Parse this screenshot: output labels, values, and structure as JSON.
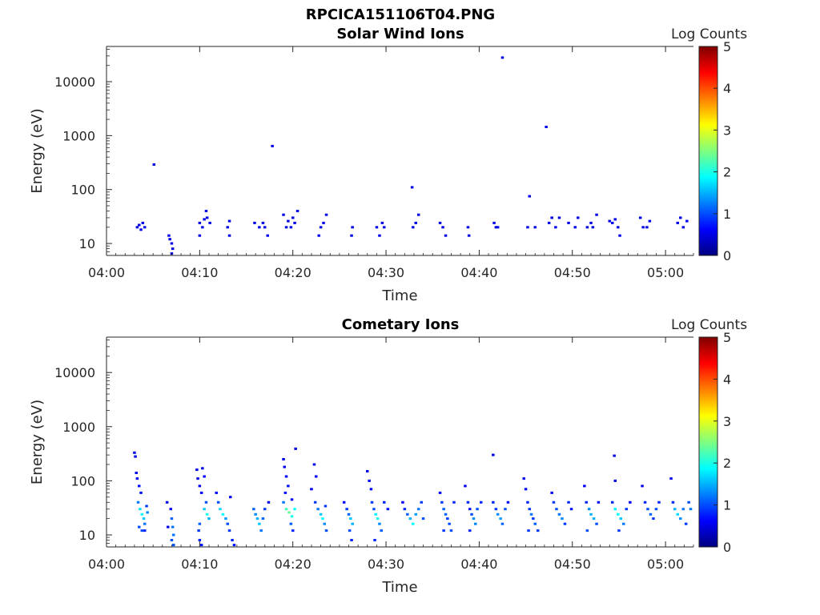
{
  "figure_title": "RPCICA151106T04.PNG",
  "colors": {
    "colormap": [
      "#00007f",
      "#0000ff",
      "#007fff",
      "#00ffff",
      "#7fff7f",
      "#ffff00",
      "#ff7f00",
      "#ff0000",
      "#7f0000"
    ],
    "axis": "#262626"
  },
  "chart_data": [
    {
      "type": "heatmap",
      "title": "Solar Wind Ions",
      "xlabel": "Time",
      "ylabel": "Energy (eV)",
      "yscale": "log",
      "xlim": [
        "04:00",
        "05:03"
      ],
      "ylim": [
        6,
        45000
      ],
      "x_ticks": [
        "04:00",
        "04:10",
        "04:20",
        "04:30",
        "04:40",
        "04:50",
        "05:00"
      ],
      "y_ticks": [
        "10",
        "100",
        "1000",
        "10000"
      ],
      "colorbar": {
        "label": "Log Counts",
        "range": [
          0,
          5
        ],
        "ticks": [
          "0",
          "1",
          "2",
          "3",
          "4",
          "5"
        ]
      },
      "points": [
        [
          3.3,
          20,
          0.5
        ],
        [
          3.5,
          22,
          0.5
        ],
        [
          3.7,
          18,
          0.5
        ],
        [
          3.9,
          24,
          0.5
        ],
        [
          4.1,
          20,
          0.5
        ],
        [
          5.1,
          290,
          0.5
        ],
        [
          6.7,
          14,
          0.5
        ],
        [
          6.8,
          12,
          0.5
        ],
        [
          7.0,
          10,
          0.5
        ],
        [
          7.1,
          8,
          0.5
        ],
        [
          7.0,
          6.5,
          0.5
        ],
        [
          10.0,
          24,
          0.5
        ],
        [
          10.0,
          14,
          0.5
        ],
        [
          10.3,
          20,
          0.5
        ],
        [
          10.5,
          28,
          0.5
        ],
        [
          10.7,
          40,
          0.5
        ],
        [
          10.8,
          30,
          0.5
        ],
        [
          11.1,
          24,
          0.5
        ],
        [
          13.0,
          20,
          0.5
        ],
        [
          13.2,
          14,
          0.5
        ],
        [
          13.2,
          26,
          0.5
        ],
        [
          15.9,
          24,
          0.5
        ],
        [
          16.4,
          20,
          0.5
        ],
        [
          16.8,
          24,
          0.5
        ],
        [
          17.0,
          20,
          0.5
        ],
        [
          17.3,
          14,
          0.5
        ],
        [
          17.8,
          640,
          0.5
        ],
        [
          19.0,
          34,
          0.5
        ],
        [
          19.3,
          20,
          0.5
        ],
        [
          19.5,
          26,
          0.5
        ],
        [
          19.8,
          20,
          0.5
        ],
        [
          20.0,
          30,
          0.5
        ],
        [
          20.2,
          24,
          0.5
        ],
        [
          20.5,
          40,
          0.5
        ],
        [
          22.8,
          14,
          0.5
        ],
        [
          23.0,
          20,
          0.5
        ],
        [
          23.3,
          24,
          0.5
        ],
        [
          23.6,
          34,
          0.5
        ],
        [
          26.3,
          14,
          0.5
        ],
        [
          26.4,
          20,
          0.5
        ],
        [
          29.0,
          20,
          0.5
        ],
        [
          29.3,
          14,
          0.5
        ],
        [
          29.6,
          24,
          0.5
        ],
        [
          29.8,
          20,
          0.5
        ],
        [
          32.8,
          110,
          0.5
        ],
        [
          32.9,
          20,
          0.5
        ],
        [
          33.2,
          24,
          0.5
        ],
        [
          33.5,
          34,
          0.5
        ],
        [
          35.8,
          24,
          0.5
        ],
        [
          36.1,
          20,
          0.5
        ],
        [
          36.4,
          14,
          0.5
        ],
        [
          38.8,
          20,
          0.5
        ],
        [
          38.9,
          14,
          0.5
        ],
        [
          41.6,
          24,
          0.5
        ],
        [
          41.8,
          20,
          0.5
        ],
        [
          42.0,
          20,
          0.5
        ],
        [
          42.5,
          28000,
          0.5
        ],
        [
          45.2,
          20,
          0.5
        ],
        [
          45.4,
          75,
          0.5
        ],
        [
          46.0,
          20,
          0.5
        ],
        [
          47.2,
          1450,
          0.5
        ],
        [
          47.5,
          24,
          0.5
        ],
        [
          47.8,
          30,
          0.5
        ],
        [
          48.2,
          20,
          0.5
        ],
        [
          48.6,
          30,
          0.5
        ],
        [
          49.6,
          24,
          0.5
        ],
        [
          50.3,
          20,
          0.5
        ],
        [
          50.6,
          30,
          0.5
        ],
        [
          51.6,
          20,
          0.5
        ],
        [
          52.0,
          24,
          0.5
        ],
        [
          52.2,
          20,
          0.5
        ],
        [
          52.6,
          34,
          0.5
        ],
        [
          54.0,
          26,
          0.5
        ],
        [
          54.3,
          24,
          0.5
        ],
        [
          54.6,
          28,
          0.5
        ],
        [
          54.9,
          20,
          0.5
        ],
        [
          55.1,
          14,
          0.5
        ],
        [
          57.3,
          30,
          0.5
        ],
        [
          57.6,
          20,
          0.5
        ],
        [
          58.0,
          20,
          0.5
        ],
        [
          58.3,
          26,
          0.5
        ],
        [
          61.3,
          24,
          0.5
        ],
        [
          61.6,
          30,
          0.5
        ],
        [
          61.9,
          20,
          0.5
        ],
        [
          62.3,
          26,
          0.5
        ]
      ]
    },
    {
      "type": "heatmap",
      "title": "Cometary Ions",
      "xlabel": "Time",
      "ylabel": "Energy (eV)",
      "yscale": "log",
      "xlim": [
        "04:00",
        "05:03"
      ],
      "ylim": [
        6,
        45000
      ],
      "x_ticks": [
        "04:00",
        "04:10",
        "04:20",
        "04:30",
        "04:40",
        "04:50",
        "05:00"
      ],
      "y_ticks": [
        "10",
        "100",
        "1000",
        "10000"
      ],
      "colorbar": {
        "label": "Log Counts",
        "range": [
          0,
          5
        ],
        "ticks": [
          "0",
          "1",
          "2",
          "3",
          "4",
          "5"
        ]
      },
      "points": [
        [
          3.0,
          330,
          0.5
        ],
        [
          3.1,
          280,
          0.5
        ],
        [
          3.2,
          140,
          0.5
        ],
        [
          3.3,
          110,
          0.5
        ],
        [
          3.5,
          80,
          0.7
        ],
        [
          3.7,
          60,
          0.7
        ],
        [
          3.4,
          40,
          1.2
        ],
        [
          3.6,
          30,
          1.7
        ],
        [
          3.8,
          24,
          1.9
        ],
        [
          4.0,
          20,
          1.6
        ],
        [
          4.1,
          16,
          1.2
        ],
        [
          3.5,
          14,
          1.0
        ],
        [
          3.8,
          12,
          1.0
        ],
        [
          4.1,
          12,
          0.8
        ],
        [
          4.3,
          34,
          0.9
        ],
        [
          4.4,
          26,
          1.3
        ],
        [
          6.5,
          40,
          0.5
        ],
        [
          6.6,
          14,
          0.5
        ],
        [
          6.9,
          30,
          0.6
        ],
        [
          7.0,
          20,
          1.1
        ],
        [
          7.1,
          14,
          1.2
        ],
        [
          7.2,
          10,
          1.2
        ],
        [
          7.0,
          8,
          1.0
        ],
        [
          7.2,
          6.5,
          1.0
        ],
        [
          9.7,
          160,
          0.5
        ],
        [
          9.8,
          110,
          0.5
        ],
        [
          10.0,
          80,
          0.6
        ],
        [
          10.2,
          60,
          0.6
        ],
        [
          10.3,
          170,
          0.5
        ],
        [
          10.5,
          120,
          0.6
        ],
        [
          10.7,
          40,
          1.0
        ],
        [
          10.5,
          30,
          1.6
        ],
        [
          10.8,
          24,
          2.0
        ],
        [
          11.0,
          20,
          1.5
        ],
        [
          10.0,
          16,
          1.1
        ],
        [
          9.9,
          12,
          0.9
        ],
        [
          10.0,
          8,
          0.8
        ],
        [
          10.2,
          6.5,
          0.7
        ],
        [
          11.8,
          60,
          0.6
        ],
        [
          12.0,
          40,
          1.0
        ],
        [
          12.2,
          30,
          1.7
        ],
        [
          12.5,
          24,
          1.9
        ],
        [
          12.8,
          20,
          1.4
        ],
        [
          13.0,
          16,
          1.0
        ],
        [
          13.2,
          12,
          0.9
        ],
        [
          13.5,
          8,
          0.8
        ],
        [
          13.7,
          6.5,
          0.7
        ],
        [
          13.3,
          50,
          0.6
        ],
        [
          15.8,
          30,
          1.1
        ],
        [
          16.0,
          24,
          1.3
        ],
        [
          16.2,
          20,
          1.5
        ],
        [
          16.4,
          16,
          1.6
        ],
        [
          16.6,
          12,
          1.2
        ],
        [
          16.8,
          20,
          1.1
        ],
        [
          17.0,
          30,
          0.9
        ],
        [
          17.4,
          40,
          0.5
        ],
        [
          19.0,
          250,
          0.5
        ],
        [
          19.1,
          180,
          0.6
        ],
        [
          19.3,
          120,
          0.6
        ],
        [
          19.5,
          80,
          0.7
        ],
        [
          19.2,
          60,
          0.7
        ],
        [
          19.0,
          40,
          1.2
        ],
        [
          19.3,
          30,
          2.2
        ],
        [
          19.6,
          26,
          2.4
        ],
        [
          19.9,
          22,
          2.0
        ],
        [
          20.2,
          30,
          1.9
        ],
        [
          19.8,
          16,
          1.1
        ],
        [
          20.0,
          12,
          0.8
        ],
        [
          20.3,
          390,
          0.5
        ],
        [
          19.9,
          45,
          0.6
        ],
        [
          22.0,
          70,
          0.6
        ],
        [
          22.3,
          200,
          0.5
        ],
        [
          22.5,
          120,
          0.6
        ],
        [
          22.4,
          40,
          0.9
        ],
        [
          22.7,
          30,
          1.2
        ],
        [
          23.0,
          24,
          1.6
        ],
        [
          23.2,
          20,
          1.9
        ],
        [
          23.4,
          16,
          1.3
        ],
        [
          23.6,
          12,
          1.0
        ],
        [
          23.5,
          34,
          0.9
        ],
        [
          25.5,
          40,
          0.6
        ],
        [
          25.8,
          30,
          0.9
        ],
        [
          26.0,
          24,
          1.1
        ],
        [
          26.2,
          20,
          1.6
        ],
        [
          26.4,
          16,
          1.5
        ],
        [
          26.1,
          12,
          1.0
        ],
        [
          26.3,
          8,
          0.8
        ],
        [
          28.0,
          150,
          0.5
        ],
        [
          28.2,
          100,
          0.6
        ],
        [
          28.4,
          70,
          0.6
        ],
        [
          28.5,
          40,
          0.9
        ],
        [
          28.7,
          30,
          1.0
        ],
        [
          28.9,
          24,
          1.8
        ],
        [
          29.1,
          20,
          2.0
        ],
        [
          29.3,
          16,
          1.3
        ],
        [
          29.5,
          12,
          1.1
        ],
        [
          29.8,
          40,
          0.8
        ],
        [
          30.2,
          30,
          0.7
        ],
        [
          28.8,
          8,
          0.8
        ],
        [
          31.8,
          40,
          0.6
        ],
        [
          32.0,
          30,
          0.8
        ],
        [
          32.3,
          24,
          1.1
        ],
        [
          32.6,
          20,
          1.5
        ],
        [
          32.9,
          16,
          1.9
        ],
        [
          33.2,
          24,
          1.4
        ],
        [
          33.5,
          30,
          1.2
        ],
        [
          33.8,
          40,
          0.9
        ],
        [
          34.0,
          20,
          1.0
        ],
        [
          35.8,
          60,
          0.6
        ],
        [
          36.0,
          40,
          0.9
        ],
        [
          36.2,
          30,
          1.1
        ],
        [
          36.4,
          24,
          1.1
        ],
        [
          36.6,
          20,
          0.9
        ],
        [
          36.8,
          16,
          1.0
        ],
        [
          37.0,
          12,
          1.0
        ],
        [
          36.2,
          12,
          0.9
        ],
        [
          37.3,
          40,
          0.8
        ],
        [
          38.5,
          80,
          0.6
        ],
        [
          38.8,
          40,
          0.8
        ],
        [
          39.0,
          30,
          0.7
        ],
        [
          39.2,
          24,
          1.0
        ],
        [
          39.4,
          20,
          1.3
        ],
        [
          39.6,
          16,
          1.3
        ],
        [
          39.8,
          30,
          1.0
        ],
        [
          40.2,
          40,
          0.8
        ],
        [
          39.0,
          12,
          0.8
        ],
        [
          41.5,
          300,
          0.5
        ],
        [
          41.5,
          40,
          0.8
        ],
        [
          41.8,
          30,
          0.9
        ],
        [
          42.0,
          24,
          1.3
        ],
        [
          42.3,
          20,
          1.4
        ],
        [
          42.5,
          16,
          1.1
        ],
        [
          42.8,
          30,
          1.0
        ],
        [
          43.1,
          40,
          0.7
        ],
        [
          44.8,
          110,
          0.5
        ],
        [
          45.0,
          70,
          0.6
        ],
        [
          45.2,
          40,
          0.8
        ],
        [
          45.4,
          30,
          0.9
        ],
        [
          45.6,
          24,
          1.2
        ],
        [
          45.8,
          20,
          0.9
        ],
        [
          46.0,
          16,
          1.1
        ],
        [
          45.3,
          12,
          0.9
        ],
        [
          46.3,
          12,
          0.9
        ],
        [
          47.8,
          60,
          0.6
        ],
        [
          48.0,
          40,
          0.9
        ],
        [
          48.3,
          30,
          1.0
        ],
        [
          48.6,
          24,
          1.2
        ],
        [
          48.9,
          20,
          1.3
        ],
        [
          49.2,
          16,
          0.9
        ],
        [
          49.6,
          40,
          0.8
        ],
        [
          49.9,
          30,
          0.7
        ],
        [
          51.3,
          80,
          0.6
        ],
        [
          51.5,
          40,
          0.8
        ],
        [
          51.8,
          30,
          1.3
        ],
        [
          52.0,
          24,
          1.5
        ],
        [
          52.3,
          20,
          1.5
        ],
        [
          52.6,
          16,
          1.0
        ],
        [
          51.6,
          12,
          1.0
        ],
        [
          52.8,
          40,
          0.7
        ],
        [
          54.5,
          290,
          0.5
        ],
        [
          54.6,
          100,
          0.5
        ],
        [
          54.3,
          40,
          0.8
        ],
        [
          54.6,
          30,
          1.8
        ],
        [
          54.9,
          24,
          1.9
        ],
        [
          55.2,
          20,
          1.6
        ],
        [
          55.5,
          16,
          1.2
        ],
        [
          55.0,
          12,
          0.9
        ],
        [
          55.8,
          30,
          0.9
        ],
        [
          56.2,
          40,
          0.6
        ],
        [
          57.5,
          80,
          0.5
        ],
        [
          57.8,
          40,
          0.8
        ],
        [
          58.1,
          30,
          1.0
        ],
        [
          58.4,
          24,
          1.1
        ],
        [
          58.7,
          20,
          0.9
        ],
        [
          59.0,
          30,
          1.0
        ],
        [
          59.3,
          40,
          0.8
        ],
        [
          60.6,
          110,
          0.5
        ],
        [
          60.8,
          40,
          0.8
        ],
        [
          61.0,
          30,
          1.5
        ],
        [
          61.3,
          24,
          1.7
        ],
        [
          61.6,
          20,
          1.3
        ],
        [
          61.9,
          30,
          1.2
        ],
        [
          62.2,
          16,
          0.9
        ],
        [
          62.5,
          40,
          1.0
        ],
        [
          62.7,
          30,
          1.2
        ]
      ]
    }
  ]
}
